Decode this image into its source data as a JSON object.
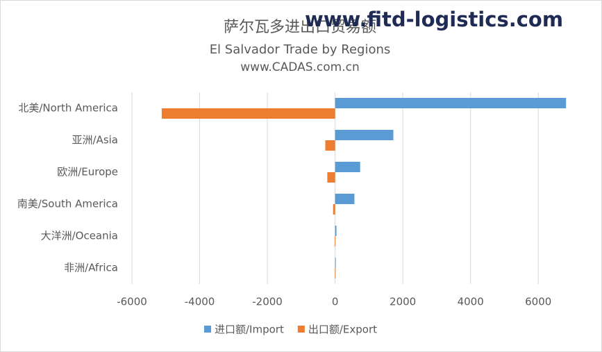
{
  "chart_data": {
    "type": "hbar",
    "title": "萨尔瓦多进出口贸易额",
    "subtitle": "El Salvador Trade by Regions",
    "source": "www.CADAS.com.cn",
    "watermark": "www.fitd-logistics.com",
    "categories": [
      "北美/North America",
      "亚洲/Asia",
      "欧洲/Europe",
      "南美/South America",
      "大洋洲/Oceania",
      "非洲/Africa"
    ],
    "series": [
      {
        "name": "进口额/Import",
        "color": "#5b9bd5",
        "values": [
          6820,
          1720,
          740,
          570,
          40,
          20
        ]
      },
      {
        "name": "出口额/Export",
        "color": "#ed7d31",
        "values": [
          -5120,
          -290,
          -230,
          -60,
          -10,
          -5
        ]
      }
    ],
    "xlim": [
      -6000,
      7000
    ],
    "xticks": [
      -6000,
      -4000,
      -2000,
      0,
      2000,
      4000,
      6000
    ],
    "grid": true,
    "legend": "bottom"
  }
}
